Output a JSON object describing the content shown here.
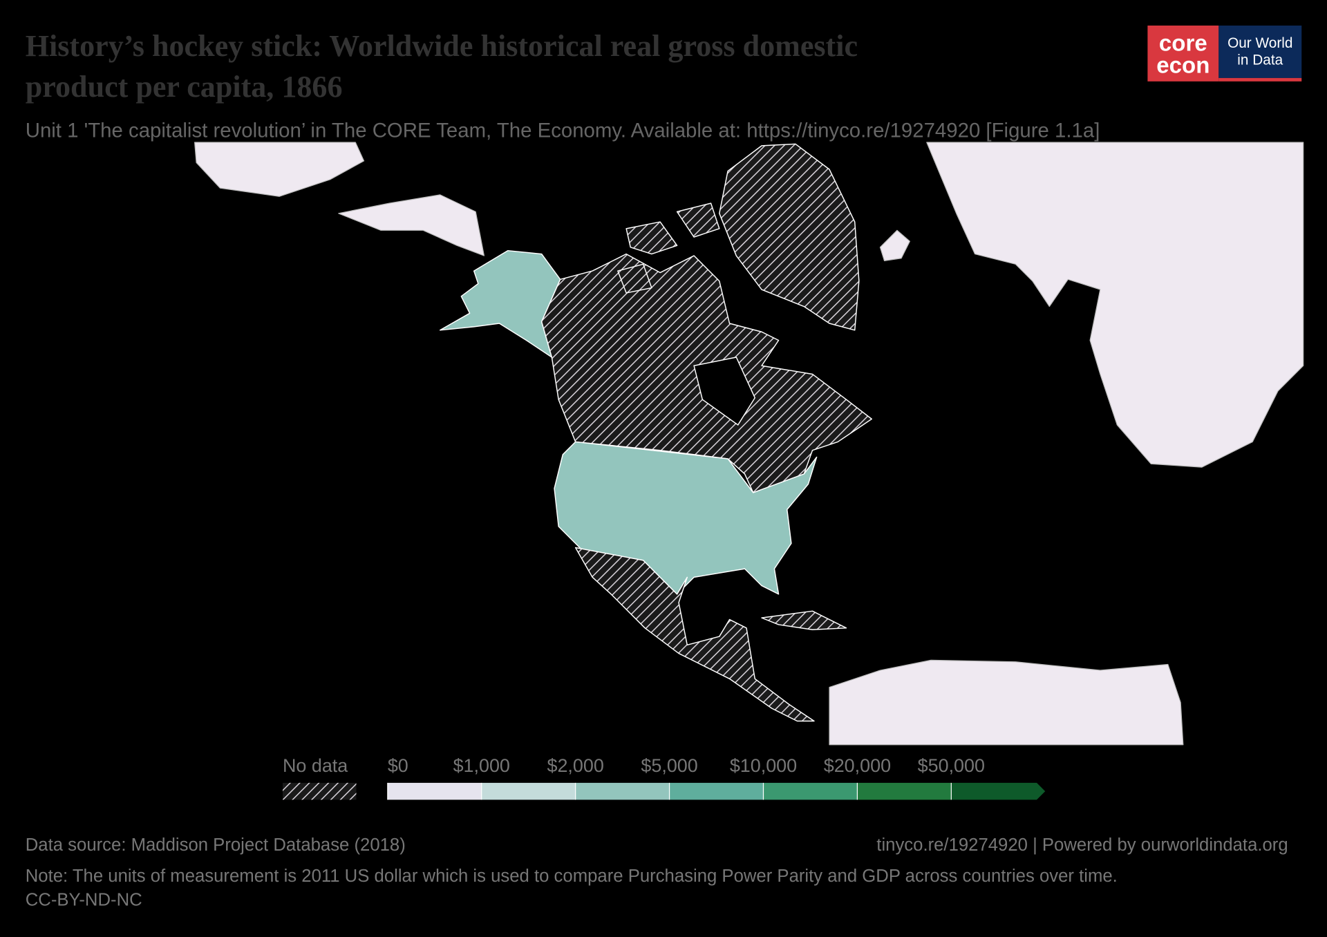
{
  "header": {
    "title_lines": [
      "History’s hockey stick: Worldwide historical real gross domestic",
      "product per capita, 1866"
    ],
    "subtitle": "Unit 1 'The capitalist revolution’ in The CORE Team, The Economy. Available at: https://tinyco.re/19274920 [Figure 1.1a]",
    "logo": {
      "core": "core",
      "econ": "econ",
      "owid_lines": [
        "Our World",
        "in Data"
      ]
    }
  },
  "map_legend": {
    "no_data": "No data",
    "ticks": [
      {
        "value": 0,
        "label": "$0"
      },
      {
        "value": 1000,
        "label": "$1,000"
      },
      {
        "value": 2000,
        "label": "$2,000"
      },
      {
        "value": 5000,
        "label": "$5,000"
      },
      {
        "value": 10000,
        "label": "$10,000"
      },
      {
        "value": 20000,
        "label": "$20,000"
      },
      {
        "value": 50000,
        "label": "$50,000"
      }
    ],
    "colors": [
      "#e6e4ee",
      "#c4dcdb",
      "#93c5bd",
      "#5fae9d",
      "#3b9870",
      "#227a3e",
      "#0e5a2a"
    ]
  },
  "footer": {
    "source": "Data source: Maddison Project Database (2018)",
    "link": "tinyco.re/19274920 | Powered by ourworldindata.org",
    "note": "Note: The units of measurement is 2011 US dollar which is used to compare Purchasing Power Parity and GDP across countries over time.",
    "license": "CC-BY-ND-NC"
  }
}
